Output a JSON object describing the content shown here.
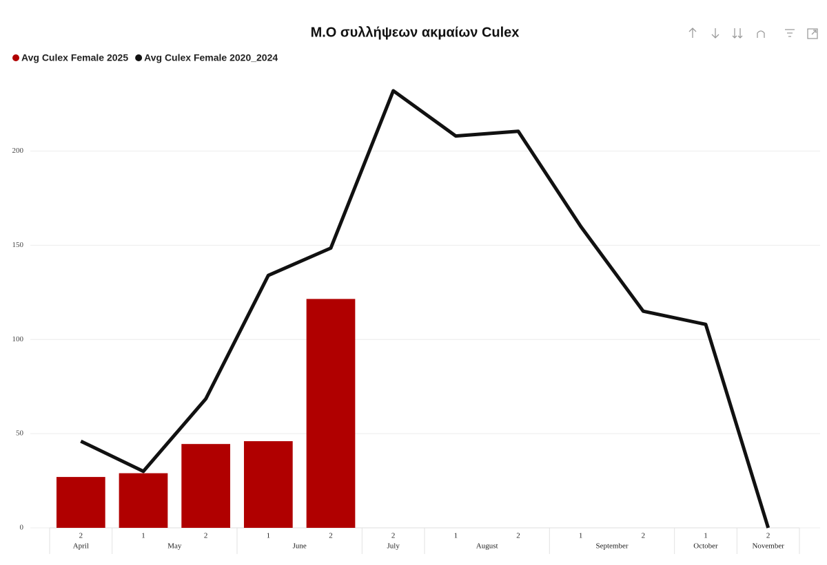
{
  "chart_data": {
    "type": "bar-line",
    "title": "Μ.Ο συλλήψεων ακμαίων Culex",
    "categories": [
      "2",
      "1",
      "2",
      "1",
      "2",
      "2",
      "1",
      "2",
      "1",
      "2",
      "1",
      "2"
    ],
    "category_groups": [
      {
        "label": "April",
        "count": 1
      },
      {
        "label": "May",
        "count": 2
      },
      {
        "label": "June",
        "count": 2
      },
      {
        "label": "July",
        "count": 1
      },
      {
        "label": "August",
        "count": 2
      },
      {
        "label": "September",
        "count": 2
      },
      {
        "label": "October",
        "count": 1
      },
      {
        "label": "November",
        "count": 1
      }
    ],
    "series": [
      {
        "name": "Avg Culex Female 2025",
        "color": "#b00000",
        "kind": "bar",
        "values": [
          27,
          29,
          44.5,
          46,
          121.5,
          null,
          null,
          null,
          null,
          null,
          null,
          null
        ]
      },
      {
        "name": "Avg Culex Female 2020_2024",
        "color": "#111111",
        "kind": "line",
        "values": [
          46,
          30,
          68.5,
          134,
          148.5,
          232,
          208,
          210.5,
          160,
          115,
          108,
          0
        ]
      }
    ],
    "ylim": [
      0,
      240
    ],
    "yticks": [
      0,
      50,
      100,
      150,
      200
    ],
    "grid": true
  }
}
